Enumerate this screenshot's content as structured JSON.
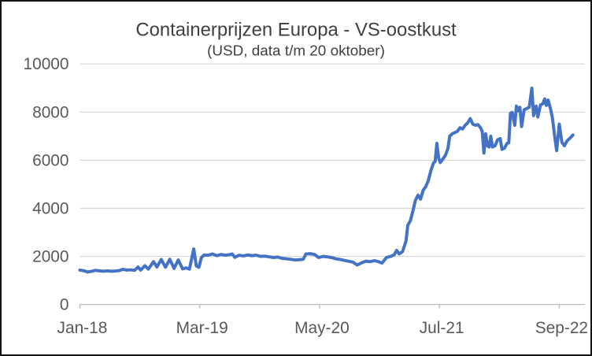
{
  "chart_data": {
    "type": "line",
    "title": "Containerprijzen Europa - VS-oostkust",
    "subtitle": "(USD, data t/m 20 oktober)",
    "xlabel": "",
    "ylabel": "",
    "x_unit": "months since Jan-2018",
    "xlim": [
      0,
      59
    ],
    "ylim": [
      0,
      10000
    ],
    "y_ticks": [
      0,
      2000,
      4000,
      6000,
      8000,
      10000
    ],
    "x_ticks": [
      {
        "t": 0,
        "label": "Jan-18"
      },
      {
        "t": 14,
        "label": "Mar-19"
      },
      {
        "t": 28,
        "label": "May-20"
      },
      {
        "t": 42,
        "label": "Jul-21"
      },
      {
        "t": 56,
        "label": "Sep-22"
      }
    ],
    "grid": "horizontal",
    "legend": "none",
    "line_color": "#4472C4",
    "grid_color": "#D9D9D9",
    "axis_color": "#BFBFBF",
    "tick_label_color": "#595959",
    "title_color": "#3F3F3F",
    "border_color": "#141414",
    "series": [
      {
        "name": "Containerprijzen Europa - VS-oostkust",
        "points": [
          [
            0,
            1430
          ],
          [
            0.5,
            1400
          ],
          [
            0.9,
            1350
          ],
          [
            1.4,
            1380
          ],
          [
            1.8,
            1420
          ],
          [
            2.3,
            1400
          ],
          [
            2.7,
            1380
          ],
          [
            3.2,
            1400
          ],
          [
            3.7,
            1380
          ],
          [
            4.1,
            1390
          ],
          [
            4.6,
            1410
          ],
          [
            5,
            1460
          ],
          [
            5.5,
            1430
          ],
          [
            5.9,
            1440
          ],
          [
            6.4,
            1420
          ],
          [
            6.8,
            1560
          ],
          [
            7.1,
            1430
          ],
          [
            7.6,
            1610
          ],
          [
            8,
            1470
          ],
          [
            8.6,
            1780
          ],
          [
            9,
            1560
          ],
          [
            9.5,
            1870
          ],
          [
            10,
            1550
          ],
          [
            10.5,
            1880
          ],
          [
            11,
            1500
          ],
          [
            11.5,
            1850
          ],
          [
            12,
            1480
          ],
          [
            12.4,
            1520
          ],
          [
            12.8,
            1470
          ],
          [
            13.3,
            2310
          ],
          [
            13.6,
            1600
          ],
          [
            13.9,
            1550
          ],
          [
            14.2,
            1950
          ],
          [
            14.5,
            2060
          ],
          [
            15,
            2050
          ],
          [
            15.5,
            2100
          ],
          [
            16,
            2030
          ],
          [
            16.5,
            2080
          ],
          [
            17,
            2050
          ],
          [
            17.5,
            2070
          ],
          [
            17.8,
            2100
          ],
          [
            18.1,
            1960
          ],
          [
            18.6,
            2050
          ],
          [
            19.1,
            2020
          ],
          [
            19.6,
            2060
          ],
          [
            20.1,
            2030
          ],
          [
            20.6,
            2050
          ],
          [
            21.1,
            2000
          ],
          [
            21.6,
            2010
          ],
          [
            22.1,
            1980
          ],
          [
            22.6,
            1950
          ],
          [
            23.1,
            1970
          ],
          [
            23.6,
            1920
          ],
          [
            24.1,
            1900
          ],
          [
            24.6,
            1880
          ],
          [
            25.1,
            1850
          ],
          [
            25.6,
            1860
          ],
          [
            26.1,
            1880
          ],
          [
            26.4,
            2100
          ],
          [
            26.9,
            2110
          ],
          [
            27.4,
            2080
          ],
          [
            27.9,
            1950
          ],
          [
            28.4,
            2000
          ],
          [
            28.9,
            1980
          ],
          [
            29.4,
            1950
          ],
          [
            29.9,
            1900
          ],
          [
            30.4,
            1870
          ],
          [
            30.9,
            1830
          ],
          [
            31.4,
            1800
          ],
          [
            31.9,
            1760
          ],
          [
            32.4,
            1640
          ],
          [
            32.9,
            1730
          ],
          [
            33.4,
            1800
          ],
          [
            33.9,
            1780
          ],
          [
            34.4,
            1820
          ],
          [
            34.9,
            1780
          ],
          [
            35.3,
            1720
          ],
          [
            35.8,
            1950
          ],
          [
            36.3,
            2000
          ],
          [
            36.7,
            2060
          ],
          [
            37,
            2250
          ],
          [
            37.3,
            2100
          ],
          [
            37.7,
            2200
          ],
          [
            38.1,
            2640
          ],
          [
            38.3,
            3290
          ],
          [
            38.6,
            3480
          ],
          [
            38.9,
            3890
          ],
          [
            39.2,
            4330
          ],
          [
            39.5,
            4550
          ],
          [
            39.8,
            4380
          ],
          [
            40.1,
            4750
          ],
          [
            40.4,
            4900
          ],
          [
            40.7,
            5150
          ],
          [
            41,
            5560
          ],
          [
            41.3,
            5880
          ],
          [
            41.5,
            5950
          ],
          [
            41.7,
            6700
          ],
          [
            41.9,
            6100
          ],
          [
            42.1,
            5900
          ],
          [
            42.4,
            6050
          ],
          [
            42.7,
            6200
          ],
          [
            43,
            6500
          ],
          [
            43.2,
            7000
          ],
          [
            43.5,
            7100
          ],
          [
            43.8,
            7150
          ],
          [
            44.1,
            7200
          ],
          [
            44.4,
            7350
          ],
          [
            44.7,
            7300
          ],
          [
            45,
            7450
          ],
          [
            45.3,
            7550
          ],
          [
            45.6,
            7730
          ],
          [
            45.9,
            7500
          ],
          [
            46.2,
            7450
          ],
          [
            46.5,
            7480
          ],
          [
            46.8,
            7350
          ],
          [
            47,
            7200
          ],
          [
            47.2,
            6300
          ],
          [
            47.4,
            7100
          ],
          [
            47.6,
            6600
          ],
          [
            47.8,
            6550
          ],
          [
            48,
            7000
          ],
          [
            48.2,
            6550
          ],
          [
            48.5,
            6600
          ],
          [
            48.8,
            6850
          ],
          [
            49.1,
            6900
          ],
          [
            49.3,
            6450
          ],
          [
            49.6,
            6500
          ],
          [
            49.9,
            6700
          ],
          [
            50.1,
            6720
          ],
          [
            50.3,
            7950
          ],
          [
            50.5,
            7990
          ],
          [
            50.8,
            7450
          ],
          [
            51,
            8250
          ],
          [
            51.2,
            8050
          ],
          [
            51.4,
            8200
          ],
          [
            51.6,
            7400
          ],
          [
            51.9,
            8100
          ],
          [
            52.2,
            8150
          ],
          [
            52.5,
            8200
          ],
          [
            52.8,
            9000
          ],
          [
            53,
            7850
          ],
          [
            53.3,
            8250
          ],
          [
            53.5,
            7800
          ],
          [
            53.8,
            8300
          ],
          [
            54.1,
            8350
          ],
          [
            54.3,
            8550
          ],
          [
            54.5,
            8280
          ],
          [
            54.7,
            8500
          ],
          [
            55,
            8100
          ],
          [
            55.2,
            7750
          ],
          [
            55.5,
            6900
          ],
          [
            55.7,
            6400
          ],
          [
            56,
            7500
          ],
          [
            56.3,
            6750
          ],
          [
            56.6,
            6600
          ],
          [
            56.9,
            6800
          ],
          [
            57.2,
            6900
          ],
          [
            57.6,
            7050
          ]
        ]
      }
    ]
  }
}
